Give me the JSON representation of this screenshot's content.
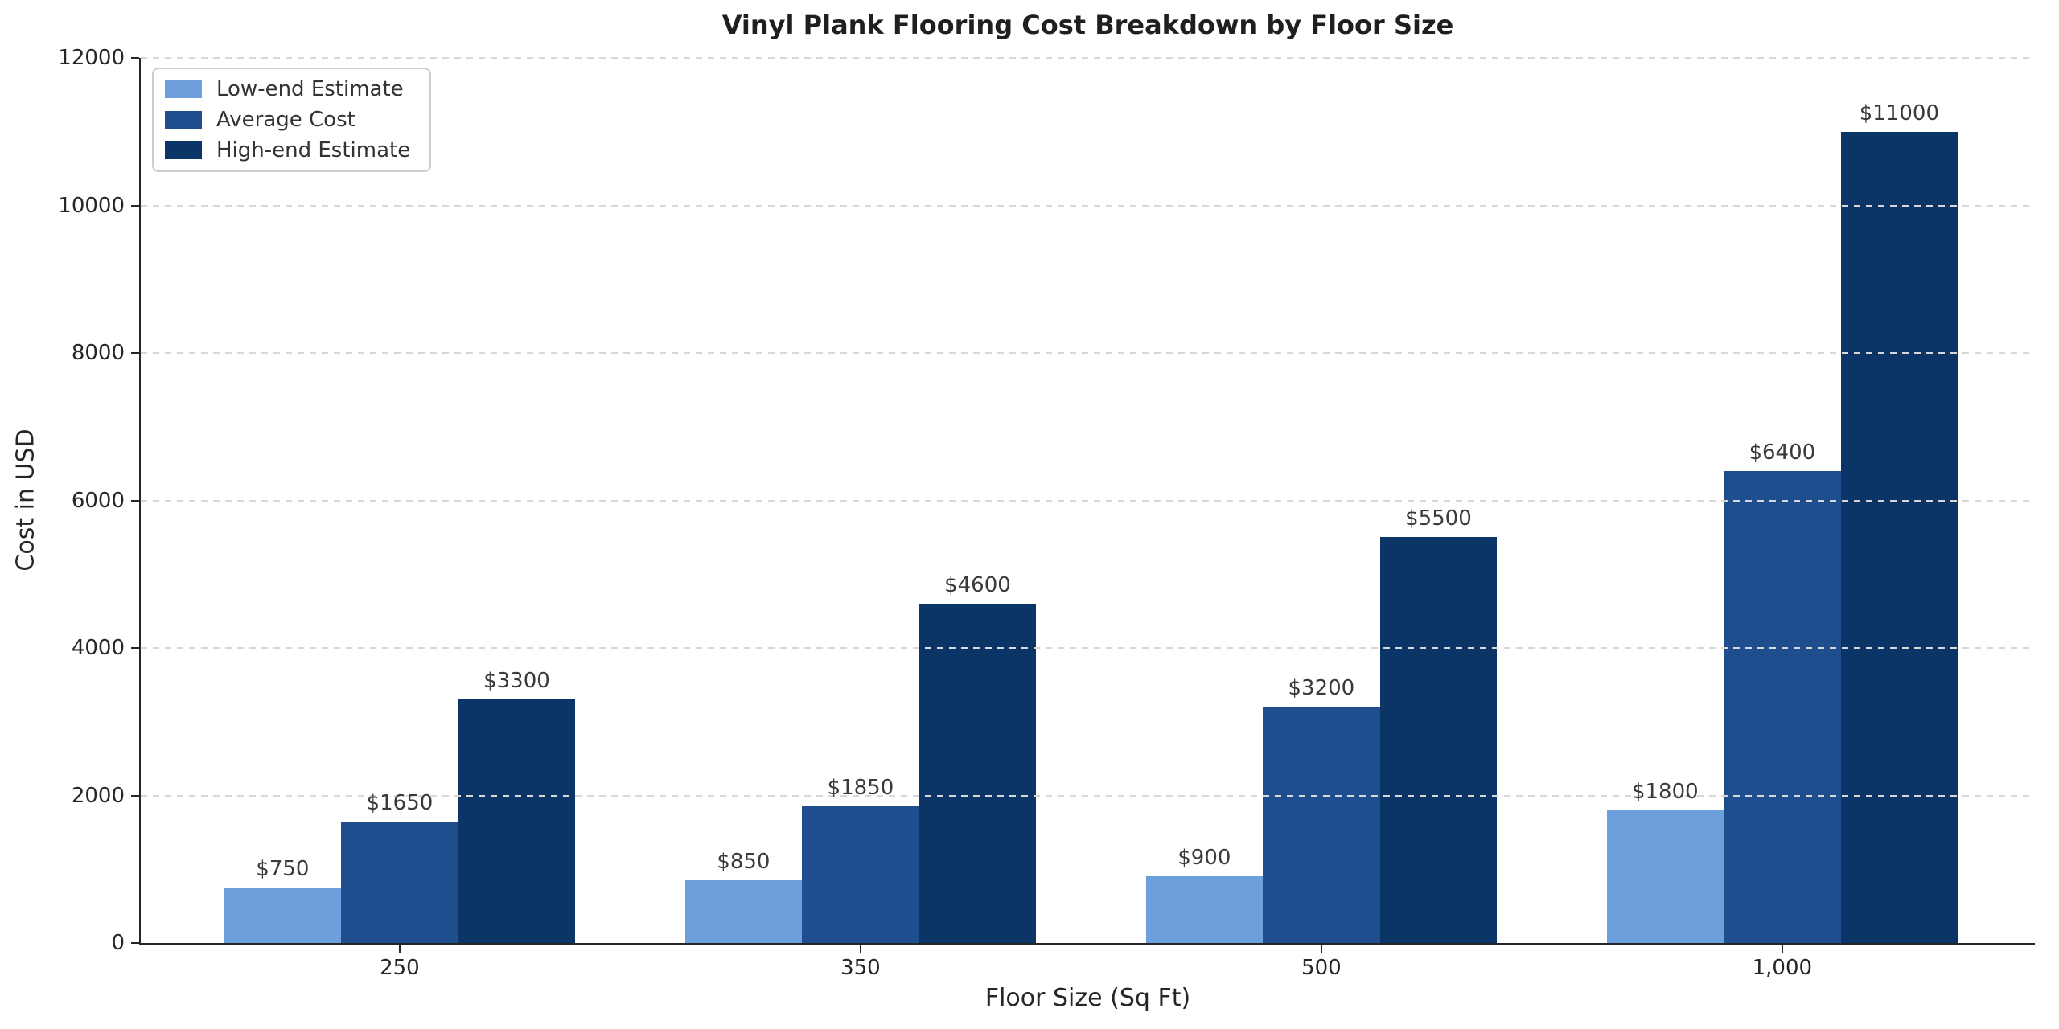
{
  "chart_data": {
    "type": "bar",
    "title": "Vinyl Plank Flooring Cost Breakdown by Floor Size",
    "xlabel": "Floor Size (Sq Ft)",
    "ylabel": "Cost in USD",
    "categories": [
      "250",
      "350",
      "500",
      "1,000"
    ],
    "series": [
      {
        "name": "Low-end Estimate",
        "color": "#6C9FDB",
        "values": [
          750,
          850,
          900,
          1800
        ],
        "data_labels": [
          "$750",
          "$850",
          "$900",
          "$1800"
        ]
      },
      {
        "name": "Average Cost",
        "color": "#1F4E8F",
        "values": [
          1650,
          1850,
          3200,
          6400
        ],
        "data_labels": [
          "$1650",
          "$1850",
          "$3200",
          "$6400"
        ]
      },
      {
        "name": "High-end Estimate",
        "color": "#0A3566",
        "values": [
          3300,
          4600,
          5500,
          11000
        ],
        "data_labels": [
          "$3300",
          "$4600",
          "$5500",
          "$11000"
        ]
      }
    ],
    "ylim": [
      0,
      12000
    ],
    "yticks": [
      0,
      2000,
      4000,
      6000,
      8000,
      10000,
      12000
    ],
    "grid": {
      "axis": "y",
      "style": "dashed",
      "color": "#d8d8d8",
      "over_bars": true
    },
    "legend": {
      "position": "upper-left"
    },
    "axis_color": "#262626"
  }
}
